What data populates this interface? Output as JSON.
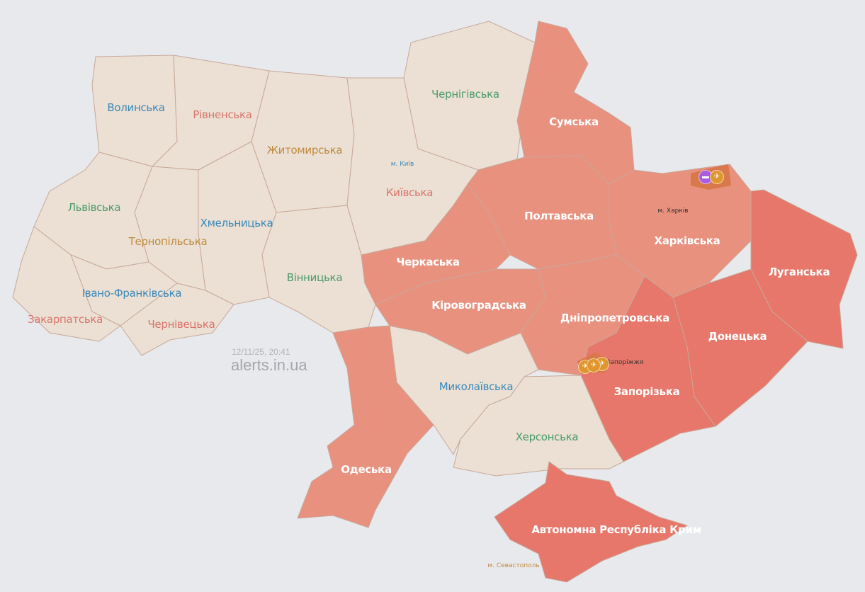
{
  "timestamp": "12/11/25, 20:41",
  "brand": "alerts.in.ua",
  "colors": {
    "background": "#e8e9ec",
    "no_alert": "#ebe0d3",
    "alert": "#e8917f",
    "alert_strong": "#e6776a",
    "active_threat": "#d9784a",
    "border": "#c8a89a"
  },
  "regions": [
    {
      "id": "volyn",
      "label": "Волинська",
      "status": "no_alert",
      "label_color": "#3a88b8"
    },
    {
      "id": "rivne",
      "label": "Рівненська",
      "status": "no_alert",
      "label_color": "#d9736a"
    },
    {
      "id": "zhytomyr",
      "label": "Житомирська",
      "status": "no_alert",
      "label_color": "#c08a3e"
    },
    {
      "id": "chernihiv",
      "label": "Чернігівська",
      "status": "no_alert",
      "label_color": "#4a9a6a"
    },
    {
      "id": "kyiv",
      "label": "Київська",
      "status": "no_alert",
      "label_color": "#d9736a"
    },
    {
      "id": "lviv",
      "label": "Львівська",
      "status": "no_alert",
      "label_color": "#4a9a6a"
    },
    {
      "id": "ternopil",
      "label": "Тернопільська",
      "status": "no_alert",
      "label_color": "#c08a3e"
    },
    {
      "id": "khmelnytskyi",
      "label": "Хмельницька",
      "status": "no_alert",
      "label_color": "#3a88b8"
    },
    {
      "id": "vinnytsia",
      "label": "Вінницька",
      "status": "no_alert",
      "label_color": "#4a9a6a"
    },
    {
      "id": "ivano-frankivsk",
      "label": "Івано-Франківська",
      "status": "no_alert",
      "label_color": "#3a88b8"
    },
    {
      "id": "zakarpattia",
      "label": "Закарпатська",
      "status": "no_alert",
      "label_color": "#d9736a"
    },
    {
      "id": "chernivtsi",
      "label": "Чернівецька",
      "status": "no_alert",
      "label_color": "#d9736a"
    },
    {
      "id": "mykolaiv",
      "label": "Миколаївська",
      "status": "no_alert",
      "label_color": "#3a88b8"
    },
    {
      "id": "kherson",
      "label": "Херсонська",
      "status": "no_alert",
      "label_color": "#4a9a6a"
    },
    {
      "id": "sumy",
      "label": "Сумська",
      "status": "alert",
      "label_color": "#ffffff"
    },
    {
      "id": "poltava",
      "label": "Полтавська",
      "status": "alert",
      "label_color": "#ffffff"
    },
    {
      "id": "kharkiv",
      "label": "Харківська",
      "status": "alert",
      "label_color": "#ffffff"
    },
    {
      "id": "cherkasy",
      "label": "Черкаська",
      "status": "alert",
      "label_color": "#ffffff"
    },
    {
      "id": "kirovohrad",
      "label": "Кіровоградська",
      "status": "alert",
      "label_color": "#ffffff"
    },
    {
      "id": "dnipro",
      "label": "Дніпропетровська",
      "status": "alert",
      "label_color": "#ffffff"
    },
    {
      "id": "odesa",
      "label": "Одеська",
      "status": "alert",
      "label_color": "#ffffff"
    },
    {
      "id": "luhansk",
      "label": "Луганська",
      "status": "alert_strong",
      "label_color": "#ffffff"
    },
    {
      "id": "donetsk",
      "label": "Донецька",
      "status": "alert_strong",
      "label_color": "#ffffff"
    },
    {
      "id": "zaporizhzhia",
      "label": "Запорізька",
      "status": "alert_strong",
      "label_color": "#ffffff"
    },
    {
      "id": "crimea",
      "label": "Автономна Республіка Крим",
      "status": "alert_strong",
      "label_color": "#ffffff"
    }
  ],
  "cities": [
    {
      "id": "kyiv-city",
      "label": "м. Київ",
      "color": "#3a88b8"
    },
    {
      "id": "kharkiv-city",
      "label": "м. Харків",
      "color": "#333333"
    },
    {
      "id": "zaporizhzhia-city",
      "label": "Запоріжжя",
      "color": "#333333"
    },
    {
      "id": "sevastopol-city",
      "label": "м. Севастополь",
      "color": "#c08a3e"
    }
  ],
  "markers": [
    {
      "id": "m1",
      "icon": "tank-icon",
      "color": "#a85ce0"
    },
    {
      "id": "m2",
      "icon": "artillery-icon",
      "color": "#e0962e"
    },
    {
      "id": "m3",
      "icon": "artillery-icon",
      "color": "#e0962e"
    },
    {
      "id": "m4",
      "icon": "artillery-icon",
      "color": "#e0962e"
    },
    {
      "id": "m5",
      "icon": "artillery-icon",
      "color": "#e0962e"
    }
  ]
}
